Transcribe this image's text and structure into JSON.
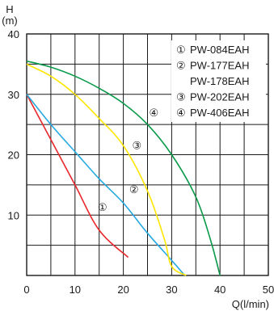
{
  "chart_data": {
    "type": "line",
    "ylabel_line1": "H",
    "ylabel_line2": "(m)",
    "xlabel": "Q(l/min)",
    "xlim": [
      0,
      50
    ],
    "ylim": [
      0,
      40
    ],
    "x_ticks": [
      {
        "value": 0,
        "label": "0"
      },
      {
        "value": 10,
        "label": "10"
      },
      {
        "value": 20,
        "label": "20"
      },
      {
        "value": 30,
        "label": "30"
      },
      {
        "value": 40,
        "label": "40"
      },
      {
        "value": 50,
        "label": "50"
      }
    ],
    "y_ticks": [
      {
        "value": 10,
        "label": "10"
      },
      {
        "value": 20,
        "label": "20"
      },
      {
        "value": 30,
        "label": "30"
      },
      {
        "value": 40,
        "label": "40"
      }
    ],
    "x_grid_step": 5,
    "y_grid_step": 5,
    "grid": true,
    "legend_position": "top-right",
    "legend": [
      {
        "marker": "①",
        "text": "PW-084EAH"
      },
      {
        "marker": "②",
        "text": "PW-177EAH"
      },
      {
        "marker": "",
        "text": "PW-178EAH"
      },
      {
        "marker": "③",
        "text": "PW-202EAH"
      },
      {
        "marker": "④",
        "text": "PW-406EAH"
      }
    ],
    "series": [
      {
        "marker": "①",
        "color": "#e8262b",
        "label_at": [
          15.7,
          11.4
        ],
        "points": [
          [
            0,
            30
          ],
          [
            5,
            22.5
          ],
          [
            10,
            15
          ],
          [
            15,
            7.5
          ],
          [
            21,
            3
          ]
        ]
      },
      {
        "marker": "②",
        "color": "#27a9e1",
        "label_at": [
          22.2,
          14.3
        ],
        "points": [
          [
            0,
            30
          ],
          [
            5,
            25
          ],
          [
            10,
            20.5
          ],
          [
            15,
            16
          ],
          [
            20,
            12
          ],
          [
            25,
            7
          ],
          [
            30,
            2.5
          ],
          [
            32.7,
            0
          ]
        ]
      },
      {
        "marker": "③",
        "color": "#ffe600",
        "label_at": [
          22.8,
          21.6
        ],
        "points": [
          [
            0,
            35
          ],
          [
            5,
            33
          ],
          [
            10,
            30
          ],
          [
            15,
            26
          ],
          [
            20,
            21.5
          ],
          [
            25,
            14
          ],
          [
            28.5,
            6
          ],
          [
            30,
            1.5
          ],
          [
            33,
            0
          ]
        ]
      },
      {
        "marker": "④",
        "color": "#0a9a4a",
        "label_at": [
          26.3,
          27
        ],
        "points": [
          [
            0,
            35.5
          ],
          [
            5,
            34.5
          ],
          [
            10,
            33
          ],
          [
            15,
            31
          ],
          [
            20,
            28.5
          ],
          [
            25,
            25
          ],
          [
            30,
            20
          ],
          [
            35,
            13
          ],
          [
            38,
            6
          ],
          [
            40,
            0
          ]
        ]
      }
    ]
  }
}
